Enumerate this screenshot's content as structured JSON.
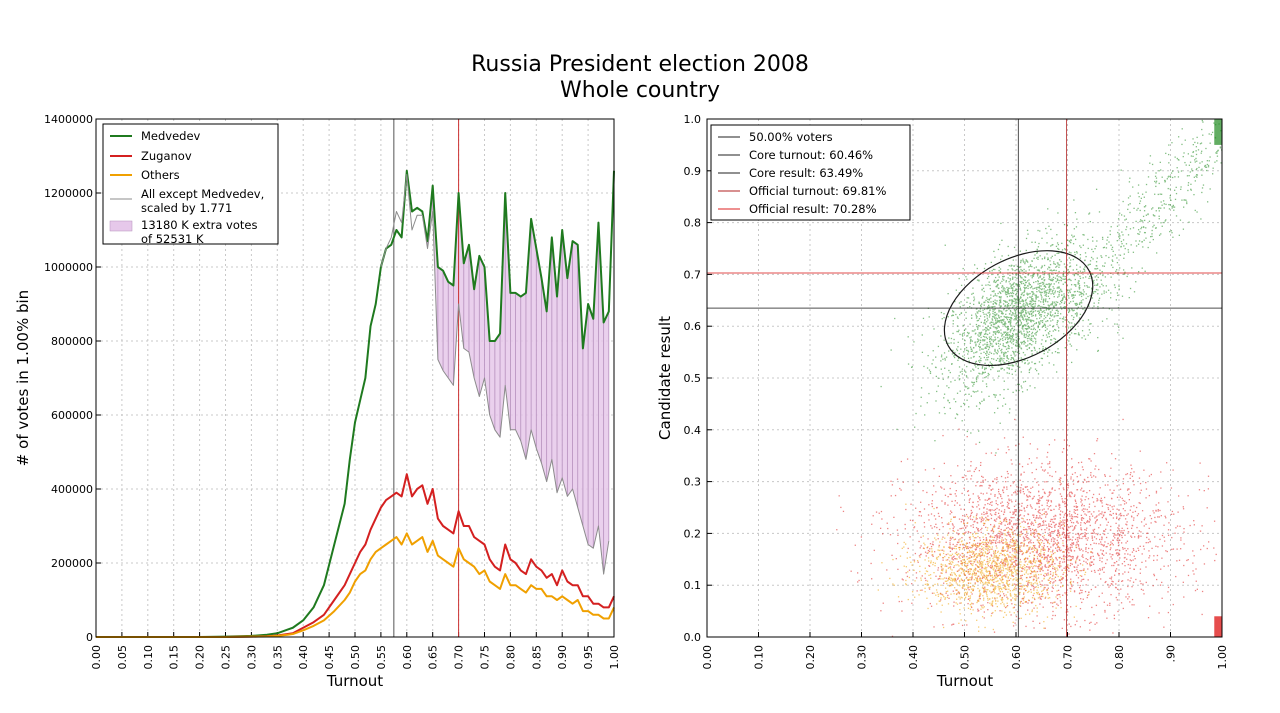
{
  "title_line1": "Russia President election 2008",
  "title_line2": "Whole country",
  "chart_data": [
    {
      "type": "line",
      "xlabel": "Turnout",
      "ylabel": "# of votes in 1.00% bin",
      "xlim": [
        0,
        1
      ],
      "ylim": [
        0,
        1400000
      ],
      "xticks": [
        "0.00",
        "0.05",
        "0.10",
        "0.15",
        "0.20",
        "0.25",
        "0.30",
        "0.35",
        "0.40",
        "0.45",
        "0.50",
        "0.55",
        "0.60",
        "0.65",
        "0.70",
        "0.75",
        "0.80",
        "0.85",
        "0.90",
        "0.95",
        "1.00"
      ],
      "yticks": [
        "0",
        "200000",
        "400000",
        "600000",
        "800000",
        "1000000",
        "1200000",
        "1400000"
      ],
      "grid": true,
      "legend_position": "top-left",
      "vlines": [
        {
          "x": 0.575,
          "color": "#555555"
        },
        {
          "x": 0.7,
          "color": "#cc3333"
        }
      ],
      "x": [
        0.0,
        0.05,
        0.1,
        0.15,
        0.2,
        0.25,
        0.3,
        0.33,
        0.35,
        0.37,
        0.38,
        0.4,
        0.42,
        0.44,
        0.46,
        0.48,
        0.49,
        0.5,
        0.51,
        0.52,
        0.53,
        0.54,
        0.55,
        0.56,
        0.57,
        0.58,
        0.59,
        0.6,
        0.61,
        0.62,
        0.63,
        0.64,
        0.65,
        0.66,
        0.67,
        0.68,
        0.69,
        0.7,
        0.71,
        0.72,
        0.73,
        0.74,
        0.75,
        0.76,
        0.77,
        0.78,
        0.79,
        0.8,
        0.81,
        0.82,
        0.83,
        0.84,
        0.85,
        0.86,
        0.87,
        0.88,
        0.89,
        0.9,
        0.91,
        0.92,
        0.93,
        0.94,
        0.95,
        0.96,
        0.97,
        0.98,
        0.99,
        1.0
      ],
      "series": [
        {
          "name": "Medvedev",
          "color": "#1f7a1f",
          "values": [
            0,
            0,
            0,
            0,
            0,
            1000,
            3000,
            6000,
            10000,
            20000,
            25000,
            45000,
            80000,
            140000,
            250000,
            360000,
            480000,
            580000,
            640000,
            700000,
            840000,
            900000,
            1000000,
            1050000,
            1060000,
            1100000,
            1080000,
            1260000,
            1150000,
            1160000,
            1150000,
            1070000,
            1220000,
            1000000,
            990000,
            960000,
            950000,
            1200000,
            1010000,
            1060000,
            940000,
            1030000,
            1000000,
            800000,
            800000,
            820000,
            1200000,
            930000,
            930000,
            920000,
            930000,
            1130000,
            1050000,
            970000,
            880000,
            1080000,
            920000,
            1100000,
            970000,
            1070000,
            1060000,
            780000,
            900000,
            860000,
            1120000,
            850000,
            880000,
            1260000
          ]
        },
        {
          "name": "Zuganov",
          "color": "#d42020",
          "values": [
            0,
            0,
            0,
            0,
            0,
            0,
            1000,
            2000,
            4000,
            8000,
            10000,
            25000,
            40000,
            60000,
            100000,
            140000,
            170000,
            200000,
            230000,
            250000,
            290000,
            320000,
            350000,
            370000,
            380000,
            390000,
            380000,
            440000,
            380000,
            400000,
            410000,
            360000,
            400000,
            320000,
            300000,
            290000,
            280000,
            340000,
            300000,
            300000,
            270000,
            260000,
            250000,
            210000,
            190000,
            180000,
            250000,
            210000,
            200000,
            180000,
            170000,
            210000,
            190000,
            180000,
            160000,
            170000,
            140000,
            180000,
            150000,
            140000,
            140000,
            110000,
            110000,
            90000,
            90000,
            80000,
            80000,
            110000
          ]
        },
        {
          "name": "Others",
          "color": "#f0a000",
          "values": [
            0,
            0,
            0,
            0,
            0,
            0,
            1000,
            1500,
            3000,
            6000,
            8000,
            18000,
            30000,
            45000,
            70000,
            100000,
            120000,
            150000,
            170000,
            180000,
            210000,
            230000,
            240000,
            250000,
            260000,
            270000,
            250000,
            280000,
            250000,
            260000,
            270000,
            230000,
            260000,
            220000,
            210000,
            200000,
            190000,
            240000,
            210000,
            200000,
            190000,
            170000,
            180000,
            150000,
            140000,
            130000,
            170000,
            140000,
            140000,
            130000,
            120000,
            140000,
            130000,
            130000,
            110000,
            110000,
            100000,
            110000,
            100000,
            90000,
            100000,
            70000,
            70000,
            60000,
            60000,
            50000,
            50000,
            80000
          ]
        },
        {
          "name": "All except Medvedev,\nscaled by 1.771",
          "color": "#8c8c8c",
          "x": [
            0.55,
            0.56,
            0.57,
            0.58,
            0.59,
            0.6,
            0.61,
            0.62,
            0.63,
            0.64,
            0.65,
            0.66,
            0.67,
            0.68,
            0.69,
            0.7,
            0.71,
            0.72,
            0.73,
            0.74,
            0.75,
            0.76,
            0.77,
            0.78,
            0.79,
            0.8,
            0.81,
            0.82,
            0.83,
            0.84,
            0.85,
            0.86,
            0.87,
            0.88,
            0.89,
            0.9,
            0.91,
            0.92,
            0.93,
            0.94,
            0.95,
            0.96,
            0.97,
            0.98,
            0.99
          ],
          "values": [
            1000000,
            1050000,
            1080000,
            1150000,
            1120000,
            1250000,
            1100000,
            1140000,
            1140000,
            1050000,
            1150000,
            750000,
            720000,
            700000,
            680000,
            900000,
            780000,
            770000,
            700000,
            650000,
            700000,
            600000,
            560000,
            540000,
            680000,
            560000,
            560000,
            530000,
            480000,
            560000,
            510000,
            470000,
            420000,
            480000,
            390000,
            430000,
            380000,
            400000,
            350000,
            300000,
            250000,
            240000,
            300000,
            170000,
            260000
          ]
        }
      ],
      "legend": [
        {
          "label": "Medvedev",
          "color": "#1f7a1f",
          "kind": "line"
        },
        {
          "label": "Zuganov",
          "color": "#d42020",
          "kind": "line"
        },
        {
          "label": "Others",
          "color": "#f0a000",
          "kind": "line"
        },
        {
          "label": "All except Medvedev,",
          "label2": "scaled by 1.771",
          "color": "#8c8c8c",
          "kind": "thin"
        },
        {
          "label": "13180 K extra votes",
          "label2": " of 52531 K",
          "color": "#e6c8ea",
          "kind": "patch"
        }
      ],
      "fill_between": {
        "label": "13180 K extra votes\n of 52531 K",
        "color": "#e6c8ea",
        "hatch_color": "#b690bd"
      }
    },
    {
      "type": "scatter",
      "xlabel": "Turnout",
      "ylabel": "Candidate result",
      "xlim": [
        0,
        1
      ],
      "ylim": [
        0,
        1
      ],
      "xticks": [
        "0.00",
        "0.10",
        "0.20",
        "0.30",
        "0.40",
        "0.50",
        "0.60",
        "0.70",
        "0.80",
        ".90",
        "1.00"
      ],
      "yticks": [
        "0.0",
        "0.1",
        "0.2",
        "0.3",
        "0.4",
        "0.5",
        "0.6",
        "0.7",
        "0.8",
        "0.9",
        "1.0"
      ],
      "grid": true,
      "legend_position": "top-left",
      "clusters": [
        {
          "name": "Medvedev",
          "color": "#1f8a1f",
          "center": [
            0.6,
            0.62
          ],
          "spread": [
            0.07,
            0.06
          ]
        },
        {
          "name": "Zuganov",
          "color": "#e02020",
          "center": [
            0.65,
            0.19
          ],
          "spread": [
            0.13,
            0.07
          ]
        },
        {
          "name": "Others",
          "color": "#f0a000",
          "center": [
            0.55,
            0.13
          ],
          "spread": [
            0.07,
            0.04
          ]
        }
      ],
      "ellipse": {
        "center": [
          0.605,
          0.635
        ],
        "rx": 0.155,
        "ry": 0.095,
        "angle_deg": 28
      },
      "lines": [
        {
          "label": "50.00% voters",
          "color": "#222222",
          "orient": "none",
          "value": null
        },
        {
          "label": "Core turnout: 60.46%",
          "color": "#222222",
          "orient": "v",
          "value": 0.6046
        },
        {
          "label": "Core result: 63.49%",
          "color": "#222222",
          "orient": "h",
          "value": 0.6349
        },
        {
          "label": "Official turnout: 69.81%",
          "color": "#b22222",
          "orient": "v",
          "value": 0.6981
        },
        {
          "label": "Official result: 70.28%",
          "color": "#dd2222",
          "orient": "h",
          "value": 0.7028
        }
      ]
    }
  ]
}
